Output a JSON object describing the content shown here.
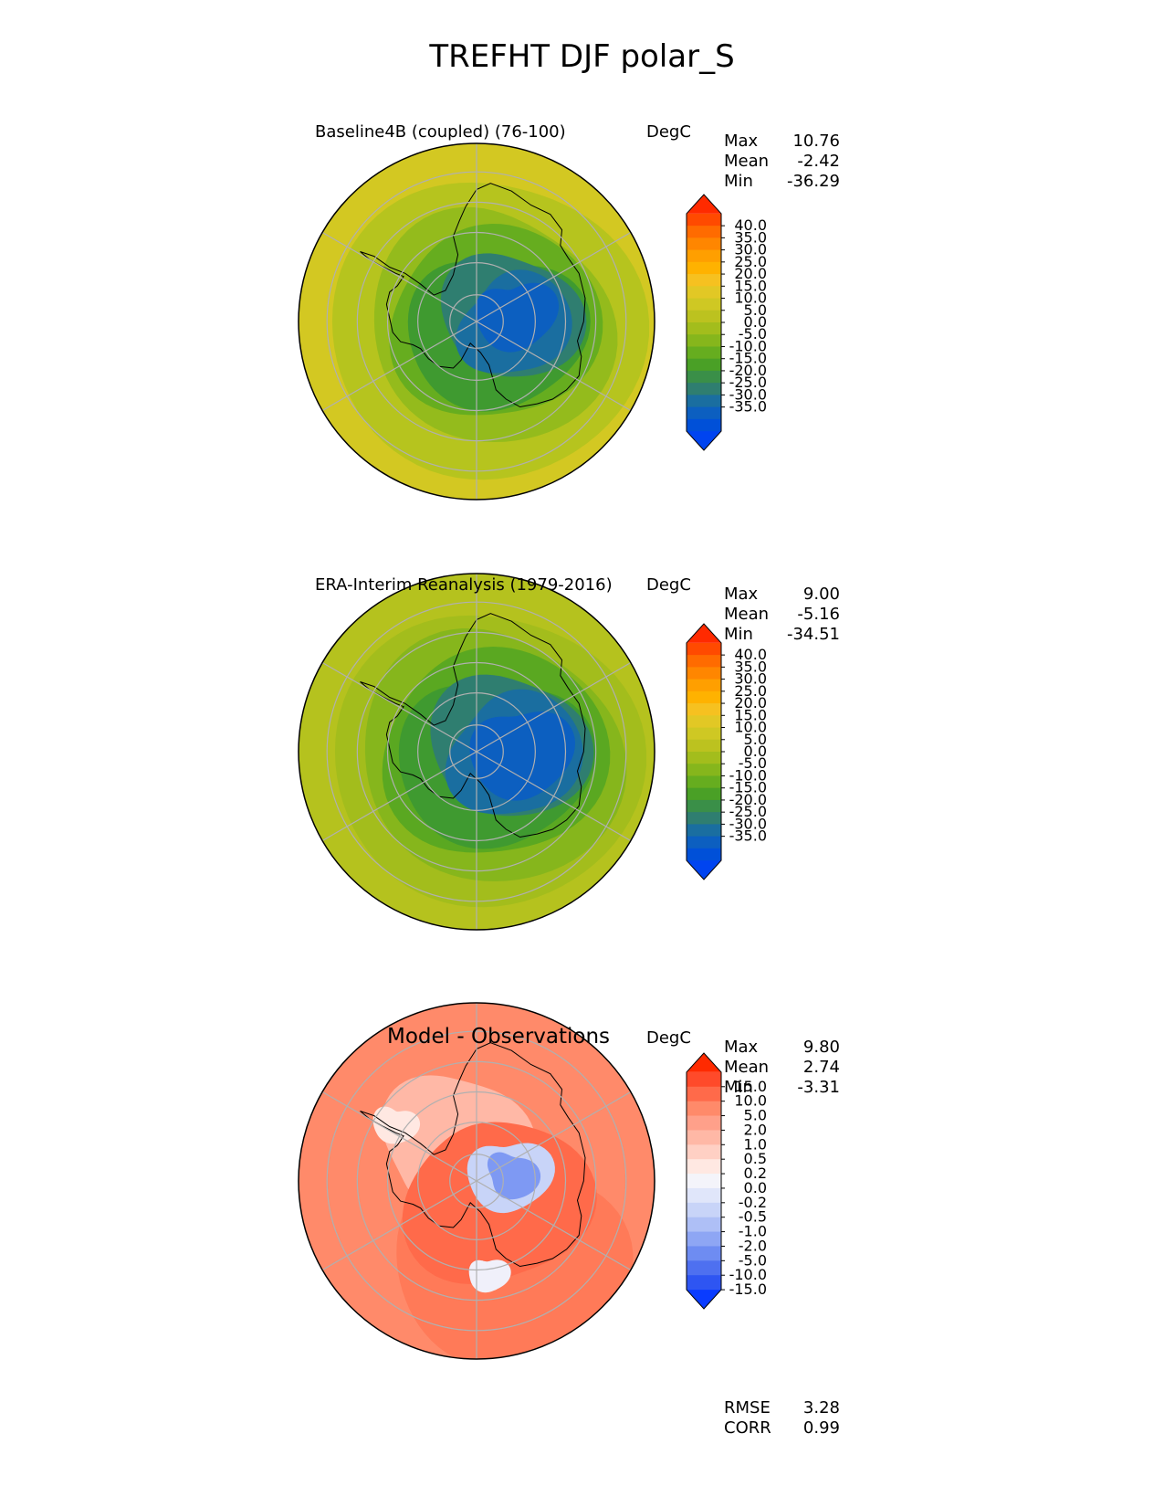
{
  "figure": {
    "title": "TREFHT DJF polar_S",
    "units": "DegC"
  },
  "chart_data": [
    {
      "type": "heatmap",
      "projection": "south-polar-stereographic",
      "title": "Baseline4B (coupled) (76-100)",
      "units": "DegC",
      "variable": "TREFHT",
      "season": "DJF",
      "stats": [
        {
          "label": "Max",
          "value": "10.76"
        },
        {
          "label": "Mean",
          "value": "-2.42"
        },
        {
          "label": "Min",
          "value": "-36.29"
        }
      ],
      "colorbar": {
        "tick_labels": [
          "40.0",
          "35.0",
          "30.0",
          "25.0",
          "20.0",
          "15.0",
          "10.0",
          "5.0",
          "0.0",
          "-5.0",
          "-10.0",
          "-15.0",
          "-20.0",
          "-25.0",
          "-30.0",
          "-35.0"
        ],
        "colors": [
          "#ff2a00",
          "#ff4a00",
          "#ff6b00",
          "#ff8600",
          "#ff9f00",
          "#ffb200",
          "#f6c120",
          "#e2c825",
          "#cfc823",
          "#bcc21f",
          "#a3bd1c",
          "#86b61c",
          "#66ad1f",
          "#4aa026",
          "#3a8f48",
          "#2f7e70",
          "#1a6ea0",
          "#0c5fc0",
          "#0050d8",
          "#0044f0"
        ],
        "extend": "both"
      }
    },
    {
      "type": "heatmap",
      "projection": "south-polar-stereographic",
      "title": "ERA-Interim Reanalysis (1979-2016)",
      "units": "DegC",
      "variable": "TREFHT",
      "season": "DJF",
      "stats": [
        {
          "label": "Max",
          "value": "9.00"
        },
        {
          "label": "Mean",
          "value": "-5.16"
        },
        {
          "label": "Min",
          "value": "-34.51"
        }
      ],
      "colorbar": {
        "tick_labels": [
          "40.0",
          "35.0",
          "30.0",
          "25.0",
          "20.0",
          "15.0",
          "10.0",
          "5.0",
          "0.0",
          "-5.0",
          "-10.0",
          "-15.0",
          "-20.0",
          "-25.0",
          "-30.0",
          "-35.0"
        ],
        "colors": [
          "#ff2a00",
          "#ff4a00",
          "#ff6b00",
          "#ff8600",
          "#ff9f00",
          "#ffb200",
          "#f6c120",
          "#e2c825",
          "#cfc823",
          "#bcc21f",
          "#a3bd1c",
          "#86b61c",
          "#66ad1f",
          "#4aa026",
          "#3a8f48",
          "#2f7e70",
          "#1a6ea0",
          "#0c5fc0",
          "#0050d8",
          "#0044f0"
        ],
        "extend": "both"
      }
    },
    {
      "type": "heatmap",
      "projection": "south-polar-stereographic",
      "title": "Model - Observations",
      "units": "DegC",
      "variable": "TREFHT",
      "season": "DJF",
      "stats": [
        {
          "label": "Max",
          "value": "9.80"
        },
        {
          "label": "Mean",
          "value": "2.74"
        },
        {
          "label": "Min",
          "value": "-3.31"
        }
      ],
      "extra_stats": [
        {
          "label": "RMSE",
          "value": "3.28"
        },
        {
          "label": "CORR",
          "value": "0.99"
        }
      ],
      "colorbar": {
        "tick_labels": [
          "15.0",
          "10.0",
          "5.0",
          "2.0",
          "1.0",
          "0.5",
          "0.2",
          "0.0",
          "-0.2",
          "-0.5",
          "-1.0",
          "-2.0",
          "-5.0",
          "-10.0",
          "-15.0"
        ],
        "colors": [
          "#ff2a00",
          "#ff4a2a",
          "#ff6a4a",
          "#ff8a6a",
          "#ffa08a",
          "#ffb8a6",
          "#ffd0c4",
          "#ffe8e2",
          "#f4f4fa",
          "#e0e6fa",
          "#c8d4f8",
          "#aebff6",
          "#8ea6f4",
          "#6e8cf2",
          "#4e70f0",
          "#2e55f2",
          "#0a3cff"
        ],
        "extend": "both"
      }
    }
  ]
}
